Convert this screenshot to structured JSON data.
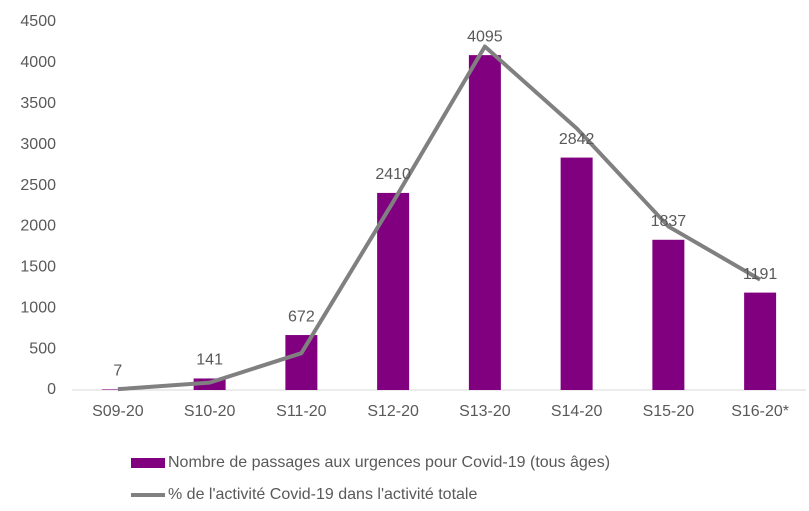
{
  "chart_data": {
    "type": "bar",
    "categories": [
      "S09-20",
      "S10-20",
      "S11-20",
      "S12-20",
      "S13-20",
      "S14-20",
      "S15-20",
      "S16-20*"
    ],
    "series": [
      {
        "name": "Nombre de passages aux urgences pour Covid-19 (tous âges)",
        "type": "bar",
        "color": "#800080",
        "data_labels": true,
        "values": [
          7,
          141,
          672,
          2410,
          4095,
          2842,
          1837,
          1191
        ]
      },
      {
        "name": "% de l'activité Covid-19 dans l'activité totale",
        "type": "line",
        "color": "#808080",
        "data_labels": false,
        "values": [
          10,
          90,
          450,
          2300,
          4200,
          3200,
          2000,
          1350
        ]
      }
    ],
    "ylim": [
      0,
      4500
    ],
    "yticks": [
      0,
      500,
      1000,
      1500,
      2000,
      2500,
      3000,
      3500,
      4000,
      4500
    ],
    "grid": false,
    "legend": "bottom"
  }
}
